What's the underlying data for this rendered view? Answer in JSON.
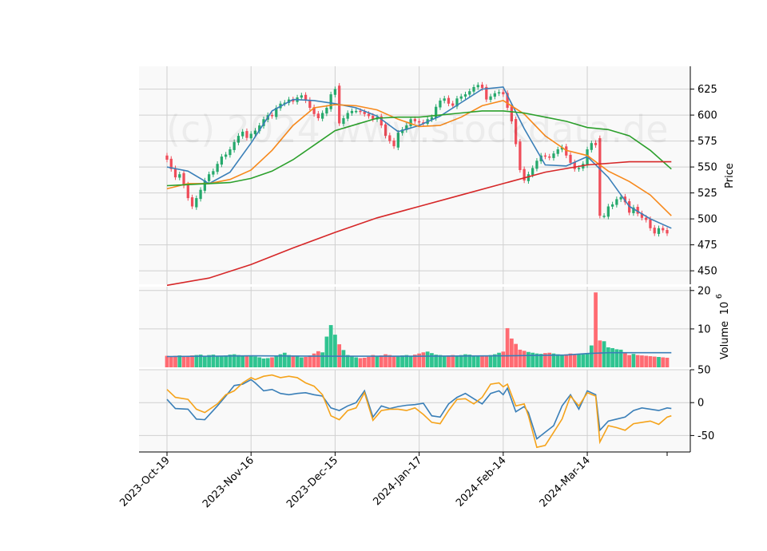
{
  "chart_data": {
    "type": "candlestick",
    "watermark": "(c) 2024 www.stockdata.de",
    "x_ticks": [
      {
        "label": "2023-Oct-19",
        "index": 0
      },
      {
        "label": "2023-Nov-16",
        "index": 20
      },
      {
        "label": "2023-Dec-15",
        "index": 40
      },
      {
        "label": "2024-Jan-17",
        "index": 60
      },
      {
        "label": "2024-Feb-14",
        "index": 80
      },
      {
        "label": "2024-Mar-14",
        "index": 100
      }
    ],
    "n_bars": 120,
    "price_panel": {
      "ylabel": "Price",
      "ylim": [
        437,
        647
      ],
      "yticks": [
        450,
        475,
        500,
        525,
        550,
        575,
        600,
        625
      ],
      "up_color": "#26a96c",
      "down_color": "#ef4d5a",
      "close": [
        557,
        548,
        540,
        543,
        532,
        520,
        512,
        520,
        528,
        537,
        543,
        546,
        553,
        560,
        562,
        567,
        574,
        580,
        584,
        578,
        582,
        585,
        590,
        596,
        600,
        599,
        607,
        611,
        612,
        615,
        613,
        617,
        619,
        614,
        607,
        601,
        597,
        602,
        607,
        620,
        625,
        592,
        597,
        602,
        604,
        604,
        603,
        601,
        599,
        596,
        598,
        590,
        580,
        575,
        570,
        583,
        586,
        590,
        596,
        594,
        593,
        592,
        596,
        598,
        608,
        614,
        616,
        611,
        609,
        616,
        618,
        620,
        623,
        627,
        629,
        626,
        615,
        618,
        621,
        622,
        620,
        607,
        594,
        572,
        547,
        537,
        543,
        549,
        556,
        561,
        560,
        559,
        563,
        567,
        569,
        561,
        554,
        548,
        549,
        553,
        567,
        573,
        571,
        503,
        503,
        512,
        514,
        519,
        521,
        516,
        506,
        511,
        505,
        501,
        499,
        491,
        486,
        491,
        489,
        486
      ],
      "ma_series": [
        {
          "color": "#3a7fb8",
          "values": [
            [
              0,
              550
            ],
            [
              5,
              546
            ],
            [
              10,
              534
            ],
            [
              15,
              545
            ],
            [
              20,
              573
            ],
            [
              25,
              604
            ],
            [
              30,
              615
            ],
            [
              35,
              614
            ],
            [
              40,
              611
            ],
            [
              45,
              607
            ],
            [
              50,
              599
            ],
            [
              55,
              584
            ],
            [
              60,
              590
            ],
            [
              65,
              599
            ],
            [
              70,
              612
            ],
            [
              75,
              625
            ],
            [
              80,
              627
            ],
            [
              85,
              587
            ],
            [
              90,
              552
            ],
            [
              95,
              551
            ],
            [
              100,
              560
            ],
            [
              105,
              540
            ],
            [
              110,
              512
            ],
            [
              115,
              500
            ],
            [
              120,
              491
            ]
          ]
        },
        {
          "color": "#f7891c",
          "values": [
            [
              0,
              529
            ],
            [
              5,
              534
            ],
            [
              10,
              534
            ],
            [
              15,
              538
            ],
            [
              20,
              547
            ],
            [
              25,
              566
            ],
            [
              30,
              590
            ],
            [
              35,
              607
            ],
            [
              40,
              610
            ],
            [
              45,
              609
            ],
            [
              50,
              605
            ],
            [
              55,
              596
            ],
            [
              60,
              589
            ],
            [
              65,
              590
            ],
            [
              70,
              598
            ],
            [
              75,
              609
            ],
            [
              80,
              614
            ],
            [
              85,
              601
            ],
            [
              90,
              580
            ],
            [
              95,
              566
            ],
            [
              100,
              561
            ],
            [
              105,
              546
            ],
            [
              110,
              536
            ],
            [
              115,
              523
            ],
            [
              120,
              503
            ]
          ]
        },
        {
          "color": "#2ca02c",
          "values": [
            [
              0,
              532
            ],
            [
              5,
              533
            ],
            [
              10,
              534
            ],
            [
              15,
              535
            ],
            [
              20,
              539
            ],
            [
              25,
              546
            ],
            [
              30,
              557
            ],
            [
              35,
              571
            ],
            [
              40,
              585
            ],
            [
              45,
              591
            ],
            [
              50,
              597
            ],
            [
              55,
              598
            ],
            [
              60,
              598
            ],
            [
              65,
              600
            ],
            [
              70,
              602
            ],
            [
              75,
              604
            ],
            [
              80,
              604
            ],
            [
              85,
              602
            ],
            [
              90,
              598
            ],
            [
              95,
              594
            ],
            [
              100,
              588
            ],
            [
              105,
              586
            ],
            [
              110,
              580
            ],
            [
              115,
              566
            ],
            [
              120,
              548
            ]
          ]
        },
        {
          "color": "#d62728",
          "values": [
            [
              0,
              436
            ],
            [
              10,
              443
            ],
            [
              20,
              456
            ],
            [
              30,
              472
            ],
            [
              40,
              487
            ],
            [
              50,
              501
            ],
            [
              60,
              512
            ],
            [
              70,
              523
            ],
            [
              80,
              534
            ],
            [
              90,
              545
            ],
            [
              100,
              552
            ],
            [
              110,
              555
            ],
            [
              120,
              555
            ]
          ]
        }
      ]
    },
    "volume_panel": {
      "ylabel": "Volume",
      "scale_label": "10",
      "scale_exponent": "6",
      "ylim": [
        0,
        21
      ],
      "yticks": [
        10,
        20
      ],
      "color_up": "#2fc490",
      "color_down": "#ff6b72",
      "values": [
        3.0,
        2.9,
        3.0,
        3.1,
        3.0,
        3.0,
        3.1,
        3.2,
        3.3,
        3.0,
        3.2,
        3.3,
        2.9,
        3.0,
        3.1,
        3.3,
        3.4,
        3.2,
        3.0,
        3.1,
        2.9,
        2.8,
        2.6,
        2.3,
        2.4,
        2.6,
        2.9,
        3.4,
        3.8,
        3.2,
        2.9,
        2.8,
        2.6,
        2.7,
        3.1,
        3.6,
        4.2,
        3.9,
        8.0,
        11.0,
        8.5,
        6.0,
        4.5,
        3.2,
        2.8,
        2.6,
        2.4,
        2.5,
        2.7,
        3.2,
        3.0,
        3.1,
        3.4,
        3.2,
        2.9,
        3.0,
        3.1,
        3.2,
        3.0,
        3.3,
        3.6,
        3.9,
        4.1,
        3.7,
        3.3,
        3.2,
        3.0,
        3.1,
        3.2,
        3.0,
        3.2,
        3.4,
        3.3,
        3.1,
        3.0,
        2.9,
        3.1,
        3.2,
        3.4,
        3.8,
        4.1,
        10.2,
        7.5,
        6.1,
        4.6,
        4.3,
        4.0,
        3.8,
        3.6,
        3.5,
        3.7,
        3.8,
        3.6,
        3.4,
        3.3,
        3.4,
        3.6,
        3.3,
        3.5,
        3.4,
        3.6,
        5.7,
        19.5,
        7.0,
        6.8,
        5.2,
        5.0,
        4.7,
        4.6,
        3.8,
        3.2,
        3.5,
        3.2,
        3.1,
        3.0,
        2.9,
        2.8,
        2.7,
        2.6,
        2.5
      ],
      "ma": [
        [
          0,
          2.8
        ],
        [
          20,
          3.0
        ],
        [
          40,
          2.9
        ],
        [
          60,
          2.9
        ],
        [
          80,
          3.0
        ],
        [
          95,
          3.2
        ],
        [
          100,
          3.6
        ],
        [
          105,
          3.8
        ],
        [
          110,
          3.8
        ],
        [
          120,
          3.8
        ]
      ]
    },
    "oscillator_panel": {
      "ylim": [
        -75,
        50
      ],
      "yticks": [
        50,
        0,
        -50
      ],
      "series": [
        {
          "color": "#3a7fb8",
          "values": [
            [
              0,
              5
            ],
            [
              2,
              -9
            ],
            [
              5,
              -10
            ],
            [
              7,
              -25
            ],
            [
              9,
              -26
            ],
            [
              12,
              -5
            ],
            [
              14,
              10
            ],
            [
              16,
              26
            ],
            [
              18,
              28
            ],
            [
              20,
              35
            ],
            [
              21,
              30
            ],
            [
              23,
              18
            ],
            [
              25,
              20
            ],
            [
              27,
              14
            ],
            [
              29,
              12
            ],
            [
              31,
              14
            ],
            [
              33,
              15
            ],
            [
              35,
              12
            ],
            [
              37,
              10
            ],
            [
              39,
              -8
            ],
            [
              41,
              -12
            ],
            [
              43,
              -5
            ],
            [
              45,
              0
            ],
            [
              47,
              18
            ],
            [
              49,
              -22
            ],
            [
              51,
              -5
            ],
            [
              53,
              -9
            ],
            [
              55,
              -6
            ],
            [
              57,
              -4
            ],
            [
              59,
              -3
            ],
            [
              61,
              -1
            ],
            [
              63,
              -20
            ],
            [
              65,
              -22
            ],
            [
              67,
              -2
            ],
            [
              69,
              8
            ],
            [
              71,
              14
            ],
            [
              73,
              6
            ],
            [
              75,
              -2
            ],
            [
              77,
              14
            ],
            [
              79,
              18
            ],
            [
              80,
              12
            ],
            [
              81,
              22
            ],
            [
              83,
              -14
            ],
            [
              85,
              -6
            ],
            [
              86,
              -15
            ],
            [
              88,
              -55
            ],
            [
              90,
              -45
            ],
            [
              92,
              -35
            ],
            [
              94,
              -5
            ],
            [
              96,
              12
            ],
            [
              98,
              -10
            ],
            [
              100,
              18
            ],
            [
              102,
              12
            ],
            [
              103,
              -42
            ],
            [
              105,
              -28
            ],
            [
              107,
              -25
            ],
            [
              109,
              -22
            ],
            [
              111,
              -12
            ],
            [
              113,
              -8
            ],
            [
              115,
              -10
            ],
            [
              117,
              -12
            ],
            [
              119,
              -8
            ],
            [
              120,
              -9
            ]
          ]
        },
        {
          "color": "#f5a31a",
          "values": [
            [
              0,
              20
            ],
            [
              2,
              8
            ],
            [
              5,
              5
            ],
            [
              7,
              -10
            ],
            [
              9,
              -15
            ],
            [
              12,
              -2
            ],
            [
              14,
              12
            ],
            [
              16,
              18
            ],
            [
              18,
              30
            ],
            [
              20,
              38
            ],
            [
              21,
              35
            ],
            [
              23,
              40
            ],
            [
              25,
              42
            ],
            [
              27,
              38
            ],
            [
              29,
              40
            ],
            [
              31,
              38
            ],
            [
              33,
              30
            ],
            [
              35,
              25
            ],
            [
              37,
              12
            ],
            [
              39,
              -20
            ],
            [
              41,
              -26
            ],
            [
              43,
              -12
            ],
            [
              45,
              -8
            ],
            [
              47,
              15
            ],
            [
              49,
              -27
            ],
            [
              51,
              -12
            ],
            [
              53,
              -10
            ],
            [
              55,
              -10
            ],
            [
              57,
              -12
            ],
            [
              59,
              -8
            ],
            [
              61,
              -18
            ],
            [
              63,
              -30
            ],
            [
              65,
              -32
            ],
            [
              67,
              -12
            ],
            [
              69,
              5
            ],
            [
              71,
              6
            ],
            [
              73,
              -2
            ],
            [
              75,
              8
            ],
            [
              77,
              28
            ],
            [
              79,
              30
            ],
            [
              80,
              24
            ],
            [
              81,
              28
            ],
            [
              83,
              -5
            ],
            [
              85,
              -2
            ],
            [
              86,
              -20
            ],
            [
              88,
              -68
            ],
            [
              90,
              -65
            ],
            [
              92,
              -45
            ],
            [
              94,
              -25
            ],
            [
              96,
              10
            ],
            [
              98,
              -5
            ],
            [
              100,
              15
            ],
            [
              102,
              10
            ],
            [
              103,
              -60
            ],
            [
              105,
              -35
            ],
            [
              107,
              -38
            ],
            [
              109,
              -42
            ],
            [
              111,
              -32
            ],
            [
              113,
              -30
            ],
            [
              115,
              -28
            ],
            [
              117,
              -33
            ],
            [
              119,
              -22
            ],
            [
              120,
              -20
            ]
          ]
        }
      ]
    }
  }
}
